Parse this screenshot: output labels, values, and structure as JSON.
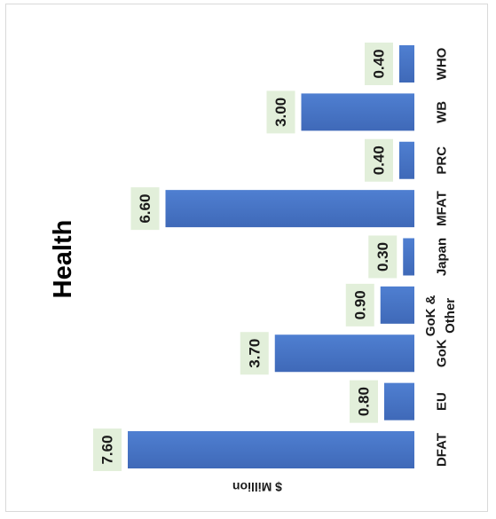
{
  "chart_data": {
    "type": "bar",
    "orientation": "rotated-vertical",
    "title": "Health",
    "ylabel": "$ Million",
    "xlabel": "",
    "categories": [
      "DFAT",
      "EU",
      "GoK",
      "GoK & Other",
      "Japan",
      "MFAT",
      "PRC",
      "WB",
      "WHO"
    ],
    "values": [
      7.6,
      0.8,
      3.7,
      0.9,
      0.3,
      6.6,
      0.4,
      3.0,
      0.4
    ],
    "value_labels": [
      "7.60",
      "0.80",
      "3.70",
      "0.90",
      "0.30",
      "6.60",
      "0.40",
      "3.00",
      "0.40"
    ],
    "ylim": [
      0,
      8
    ],
    "grid": false,
    "legend": "none",
    "bar_color": "#4472c4",
    "label_box_color": "#e2efda"
  }
}
